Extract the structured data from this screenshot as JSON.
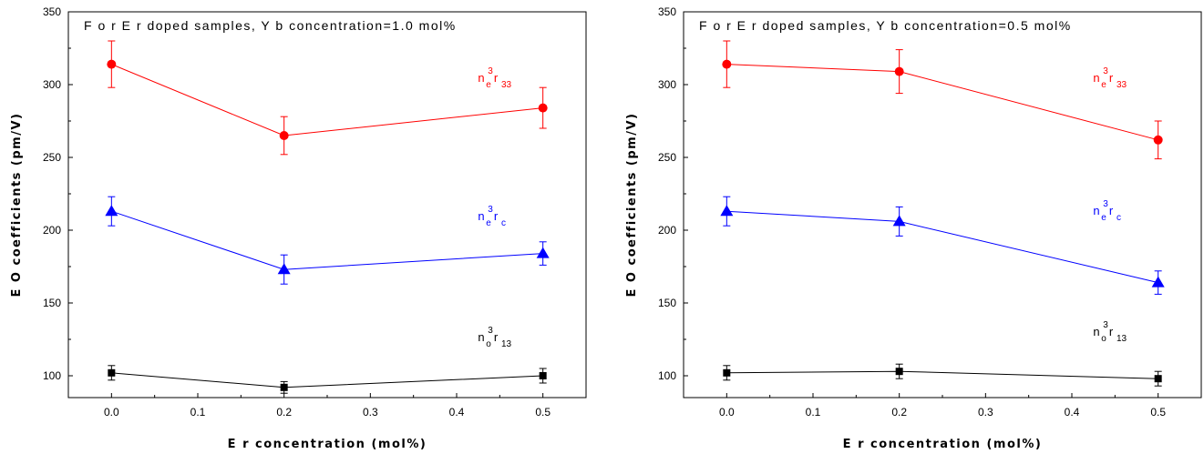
{
  "chart_data": [
    {
      "type": "line",
      "title": "F o r  E r  doped samples, Y b concentration=1.0 mol%",
      "xlabel": "E r concentration (mol%)",
      "ylabel": "E O coefficients (pm/V)",
      "xlim": [
        -0.05,
        0.55
      ],
      "ylim": [
        85,
        350
      ],
      "xticks": [
        0.0,
        0.1,
        0.2,
        0.3,
        0.4,
        0.5
      ],
      "xtick_labels": [
        "0.0",
        "0.1",
        "0.2",
        "0.3",
        "0.4",
        "0.5"
      ],
      "yticks": [
        100,
        150,
        200,
        250,
        300,
        350
      ],
      "ytick_labels": [
        "100",
        "150",
        "200",
        "250",
        "300",
        "350"
      ],
      "x": [
        0.0,
        0.2,
        0.5
      ],
      "series": [
        {
          "label": {
            "base": "n",
            "sup": "3",
            "sub1": "e",
            "mid": "r",
            "sub2": "33"
          },
          "color": "#ff0000",
          "marker": "circle",
          "values": [
            314,
            265,
            284
          ],
          "errors": [
            16,
            13,
            14
          ]
        },
        {
          "label": {
            "base": "n",
            "sup": "3",
            "sub1": "e",
            "mid": "r",
            "sub2": "c"
          },
          "color": "#0000ff",
          "marker": "triangle",
          "values": [
            213,
            173,
            184
          ],
          "errors": [
            10,
            10,
            8
          ]
        },
        {
          "label": {
            "base": "n",
            "sup": "3",
            "sub1": "o",
            "mid": "r",
            "sub2": "13"
          },
          "color": "#000000",
          "marker": "square",
          "values": [
            102,
            92,
            100
          ],
          "errors": [
            5,
            4,
            5
          ]
        }
      ]
    },
    {
      "type": "line",
      "title": "F o r  E r  doped samples, Y b concentration=0.5 mol%",
      "xlabel": "E r concentration (mol%)",
      "ylabel": "E O coefficients (pm/V)",
      "xlim": [
        -0.05,
        0.55
      ],
      "ylim": [
        85,
        350
      ],
      "xticks": [
        0.0,
        0.1,
        0.2,
        0.3,
        0.4,
        0.5
      ],
      "xtick_labels": [
        "0.0",
        "0.1",
        "0.2",
        "0.3",
        "0.4",
        "0.5"
      ],
      "yticks": [
        100,
        150,
        200,
        250,
        300,
        350
      ],
      "ytick_labels": [
        "100",
        "150",
        "200",
        "250",
        "300",
        "350"
      ],
      "x": [
        0.0,
        0.2,
        0.5
      ],
      "series": [
        {
          "label": {
            "base": "n",
            "sup": "3",
            "sub1": "e",
            "mid": "r",
            "sub2": "33"
          },
          "color": "#ff0000",
          "marker": "circle",
          "values": [
            314,
            309,
            262
          ],
          "errors": [
            16,
            15,
            13
          ]
        },
        {
          "label": {
            "base": "n",
            "sup": "3",
            "sub1": "e",
            "mid": "r",
            "sub2": "c"
          },
          "color": "#0000ff",
          "marker": "triangle",
          "values": [
            213,
            206,
            164
          ],
          "errors": [
            10,
            10,
            8
          ]
        },
        {
          "label": {
            "base": "n",
            "sup": "3",
            "sub1": "o",
            "mid": "r",
            "sub2": "13"
          },
          "color": "#000000",
          "marker": "square",
          "values": [
            102,
            103,
            98
          ],
          "errors": [
            5,
            5,
            5
          ]
        }
      ]
    }
  ]
}
